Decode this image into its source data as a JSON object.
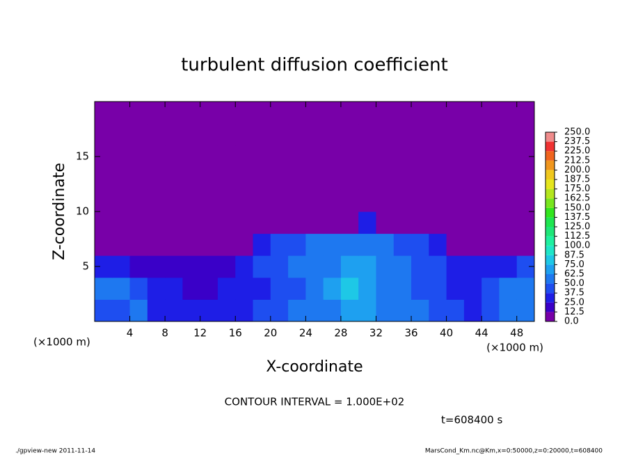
{
  "chart_data": {
    "type": "contour",
    "title": "turbulent diffusion coefficient",
    "x_label": "X-coordinate",
    "y_label": "Z-coordinate",
    "x_unit": "(×1000 m)",
    "y_unit": "(×1000 m)",
    "annotation": "CONTOUR INTERVAL = 1.000E+02",
    "time_label": "t=608400 s",
    "footer_left": "./gpview-new   2011-11-14",
    "footer_right": "MarsCond_Km.nc@Km,x=0:50000,z=0:20000,t=608400",
    "xlim": [
      0,
      50
    ],
    "ylim": [
      0,
      20
    ],
    "xticks": [
      4,
      8,
      12,
      16,
      20,
      24,
      28,
      32,
      36,
      40,
      44,
      48
    ],
    "yticks": [
      5,
      10,
      15
    ],
    "x": [
      1,
      3,
      5,
      7,
      9,
      11,
      13,
      15,
      17,
      19,
      21,
      23,
      25,
      27,
      29,
      31,
      33,
      35,
      37,
      39,
      41,
      43,
      45,
      47,
      49
    ],
    "y": [
      1,
      3,
      5,
      7,
      9,
      11,
      13,
      15,
      17,
      19
    ],
    "z": [
      [
        40,
        45,
        50,
        35,
        30,
        25,
        25,
        30,
        35,
        40,
        45,
        50,
        55,
        60,
        65,
        65,
        60,
        55,
        50,
        45,
        40,
        35,
        45,
        55,
        50
      ],
      [
        55,
        60,
        40,
        30,
        25,
        20,
        20,
        25,
        30,
        35,
        40,
        45,
        55,
        65,
        75,
        70,
        60,
        55,
        45,
        40,
        30,
        30,
        40,
        60,
        55
      ],
      [
        35,
        30,
        20,
        15,
        15,
        15,
        15,
        20,
        30,
        40,
        45,
        50,
        55,
        60,
        70,
        70,
        55,
        50,
        45,
        40,
        30,
        25,
        30,
        35,
        40
      ],
      [
        5,
        5,
        5,
        5,
        5,
        5,
        5,
        5,
        8,
        30,
        40,
        45,
        50,
        55,
        60,
        60,
        50,
        45,
        40,
        35,
        5,
        5,
        5,
        5,
        5
      ],
      [
        5,
        5,
        5,
        5,
        5,
        5,
        5,
        5,
        5,
        5,
        5,
        5,
        5,
        5,
        5,
        30,
        5,
        5,
        5,
        5,
        5,
        5,
        5,
        5,
        5
      ],
      [
        5,
        5,
        5,
        5,
        5,
        5,
        5,
        5,
        5,
        5,
        5,
        5,
        5,
        5,
        5,
        5,
        5,
        5,
        5,
        5,
        5,
        5,
        5,
        5,
        5
      ],
      [
        5,
        5,
        5,
        5,
        5,
        5,
        5,
        5,
        5,
        5,
        5,
        5,
        5,
        5,
        5,
        5,
        5,
        5,
        5,
        5,
        5,
        5,
        5,
        5,
        5
      ],
      [
        5,
        5,
        5,
        5,
        5,
        5,
        5,
        5,
        5,
        5,
        5,
        5,
        5,
        5,
        5,
        5,
        5,
        5,
        5,
        5,
        5,
        5,
        5,
        5,
        5
      ],
      [
        5,
        5,
        5,
        5,
        5,
        5,
        5,
        5,
        5,
        5,
        5,
        5,
        5,
        5,
        5,
        5,
        5,
        5,
        5,
        5,
        5,
        5,
        5,
        5,
        5
      ],
      [
        5,
        5,
        5,
        5,
        5,
        5,
        5,
        5,
        5,
        5,
        5,
        5,
        5,
        5,
        5,
        5,
        5,
        5,
        5,
        5,
        5,
        5,
        5,
        5,
        5
      ]
    ],
    "levels": [
      {
        "value": 0,
        "label": "0.0"
      },
      {
        "value": 12.5,
        "label": "12.5"
      },
      {
        "value": 25,
        "label": "25.0"
      },
      {
        "value": 37.5,
        "label": "37.5"
      },
      {
        "value": 50,
        "label": "50.0"
      },
      {
        "value": 62.5,
        "label": "62.5"
      },
      {
        "value": 75,
        "label": "75.0"
      },
      {
        "value": 87.5,
        "label": "87.5"
      },
      {
        "value": 100,
        "label": "100.0"
      },
      {
        "value": 112.5,
        "label": "112.5"
      },
      {
        "value": 125,
        "label": "125.0"
      },
      {
        "value": 137.5,
        "label": "137.5"
      },
      {
        "value": 150,
        "label": "150.0"
      },
      {
        "value": 162.5,
        "label": "162.5"
      },
      {
        "value": 175,
        "label": "175.0"
      },
      {
        "value": 187.5,
        "label": "187.5"
      },
      {
        "value": 200,
        "label": "200.0"
      },
      {
        "value": 212.5,
        "label": "212.5"
      },
      {
        "value": 225,
        "label": "225.0"
      },
      {
        "value": 237.5,
        "label": "237.5"
      },
      {
        "value": 250,
        "label": "250.0"
      }
    ],
    "colors": [
      "#7800a8",
      "#3a00c8",
      "#1e1ee6",
      "#1e4ef0",
      "#1e78f0",
      "#1ea0f0",
      "#1ec8e6",
      "#1ee6c8",
      "#1ef0a0",
      "#1ee678",
      "#1ee650",
      "#32e61e",
      "#78e61e",
      "#b4e61e",
      "#e6e61e",
      "#f0c81e",
      "#f0961e",
      "#f0641e",
      "#f03232",
      "#f08c8c"
    ]
  }
}
